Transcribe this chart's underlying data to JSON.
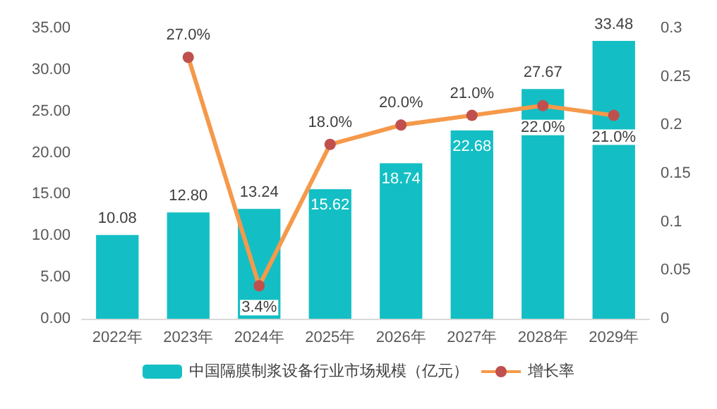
{
  "chart_data": {
    "type": "bar",
    "categories": [
      "2022年",
      "2023年",
      "2024年",
      "2025年",
      "2026年",
      "2027年",
      "2028年",
      "2029年"
    ],
    "series": [
      {
        "name": "中国隔膜制浆设备行业市场规模（亿元）",
        "type": "bar",
        "color": "#13bfc4",
        "values": [
          10.08,
          12.8,
          13.24,
          15.62,
          18.74,
          22.68,
          27.67,
          33.48
        ],
        "value_labels": [
          "10.08",
          "12.80",
          "13.24",
          "15.62",
          "18.74",
          "22.68",
          "27.67",
          "33.48"
        ]
      },
      {
        "name": "增长率",
        "type": "line",
        "axis": "y2",
        "color": "#f5994a",
        "values": [
          null,
          0.27,
          0.034,
          0.18,
          0.2,
          0.21,
          0.22,
          0.21
        ],
        "value_labels": [
          null,
          "27.0%",
          "3.4%",
          "18.0%",
          "20.0%",
          "21.0%",
          "22.0%",
          "21.0%"
        ]
      }
    ],
    "ylim": [
      0,
      35
    ],
    "yticks": [
      {
        "value": 0,
        "label": "0.00"
      },
      {
        "value": 5,
        "label": "5.00"
      },
      {
        "value": 10,
        "label": "10.00"
      },
      {
        "value": 15,
        "label": "15.00"
      },
      {
        "value": 20,
        "label": "20.00"
      },
      {
        "value": 25,
        "label": "25.00"
      },
      {
        "value": 30,
        "label": "30.00"
      },
      {
        "value": 35,
        "label": "35.00"
      }
    ],
    "y2lim": [
      0,
      0.3
    ],
    "y2ticks": [
      0,
      0.05,
      0.1,
      0.15,
      0.2,
      0.25,
      0.3
    ],
    "legend": "bottom",
    "marker": "circle",
    "grid": false
  }
}
